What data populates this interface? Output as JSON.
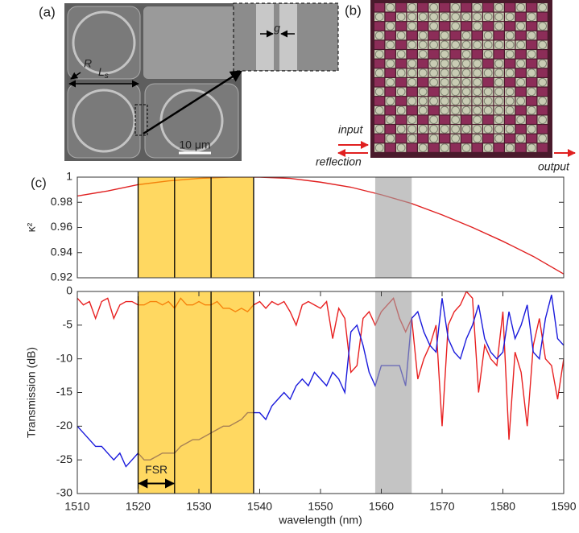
{
  "figure": {
    "panel_a": {
      "label": "(a)",
      "radius": "R",
      "side": "L",
      "side_sub": "s",
      "gap": "g",
      "scale_bar": "10 μm"
    },
    "panel_b": {
      "label": "(b)",
      "input": "input",
      "reflection": "reflection",
      "output": "output"
    },
    "panel_c": {
      "label": "(c)"
    }
  },
  "chart_data": [
    {
      "type": "line",
      "ylabel": "κ²",
      "x": [
        1510,
        1515,
        1520,
        1525,
        1530,
        1535,
        1540,
        1545,
        1550,
        1555,
        1560,
        1565,
        1570,
        1575,
        1580,
        1585,
        1590
      ],
      "series": [
        {
          "color": "#e02020",
          "values": [
            0.985,
            0.989,
            0.994,
            0.997,
            0.999,
            1.0,
            1.0,
            0.999,
            0.996,
            0.992,
            0.986,
            0.979,
            0.97,
            0.96,
            0.949,
            0.937,
            0.923
          ]
        }
      ],
      "xlim": [
        1510,
        1590
      ],
      "ylim": [
        0.92,
        1
      ],
      "yticks": [
        0.92,
        0.94,
        0.96,
        0.98,
        1
      ],
      "highlights": [
        {
          "x": [
            1520,
            1539
          ],
          "color": "#ffc000"
        },
        {
          "x": [
            1559,
            1565
          ],
          "color": "#a0a0a0"
        }
      ],
      "vlines": [
        1520,
        1526,
        1532,
        1539
      ]
    },
    {
      "type": "line",
      "xlabel": "wavelength (nm)",
      "ylabel": "Transmission (dB)",
      "x": [
        1510,
        1511,
        1512,
        1513,
        1514,
        1515,
        1516,
        1517,
        1518,
        1519,
        1520,
        1521,
        1522,
        1523,
        1524,
        1525,
        1526,
        1527,
        1528,
        1529,
        1530,
        1531,
        1532,
        1533,
        1534,
        1535,
        1536,
        1537,
        1538,
        1539,
        1540,
        1541,
        1542,
        1543,
        1544,
        1545,
        1546,
        1547,
        1548,
        1549,
        1550,
        1551,
        1552,
        1553,
        1554,
        1555,
        1556,
        1557,
        1558,
        1559,
        1560,
        1561,
        1562,
        1563,
        1564,
        1565,
        1566,
        1567,
        1568,
        1569,
        1570,
        1571,
        1572,
        1573,
        1574,
        1575,
        1576,
        1577,
        1578,
        1579,
        1580,
        1581,
        1582,
        1583,
        1584,
        1585,
        1586,
        1587,
        1588,
        1589,
        1590
      ],
      "series": [
        {
          "color": "#e82020",
          "values": [
            -1,
            -2,
            -1.5,
            -4,
            -1.5,
            -1,
            -4,
            -2,
            -1.5,
            -1.5,
            -2,
            -2,
            -1.5,
            -1.5,
            -2,
            -1.5,
            -2.5,
            -1,
            -2,
            -2,
            -1.5,
            -2,
            -2,
            -1.5,
            -2.5,
            -2.5,
            -3,
            -2.5,
            -3,
            -2,
            -1.5,
            -2.5,
            -1.5,
            -2,
            -1.5,
            -3,
            -5,
            -2,
            -1.5,
            -2,
            -2.5,
            -1.5,
            -7,
            -2.5,
            -4,
            -12,
            -11,
            -4,
            -3,
            -5,
            -3,
            -2,
            -1,
            -4,
            -6,
            -4,
            -13,
            -10,
            -8,
            -5,
            -20,
            -5,
            -3,
            -2,
            0,
            -1,
            -15,
            -8,
            -10,
            -11,
            -3,
            -22,
            -9,
            -12,
            -20,
            -8,
            -4,
            -10,
            -11,
            -16,
            -10
          ]
        },
        {
          "color": "#1a1adc",
          "values": [
            -20,
            -21,
            -22,
            -23,
            -23,
            -24,
            -25,
            -24,
            -26,
            -25,
            -24,
            -25,
            -25,
            -24.5,
            -24,
            -24,
            -24,
            -23,
            -22.5,
            -22,
            -22,
            -21.5,
            -21,
            -20.5,
            -20,
            -20,
            -19.5,
            -19,
            -18,
            -18,
            -18,
            -19,
            -17,
            -16,
            -15,
            -16,
            -14,
            -13,
            -14,
            -12,
            -13,
            -14,
            -12,
            -13,
            -15,
            -6,
            -5,
            -8,
            -12,
            -14,
            -11,
            -11,
            -11,
            -11,
            -14,
            -4,
            -3,
            -6,
            -8,
            -9,
            -1,
            -7,
            -9,
            -10,
            -7,
            -5,
            -2,
            -7,
            -9,
            -10,
            -9,
            -3,
            -7,
            -5,
            -2,
            -9,
            -10,
            -4,
            -0.5,
            -7,
            -8
          ]
        }
      ],
      "xlim": [
        1510,
        1590
      ],
      "xticks": [
        1510,
        1520,
        1530,
        1540,
        1550,
        1560,
        1570,
        1580,
        1590
      ],
      "ylim": [
        -30,
        0
      ],
      "yticks": [
        -30,
        -25,
        -20,
        -15,
        -10,
        -5,
        0
      ],
      "highlights": [
        {
          "x": [
            1520,
            1539
          ],
          "color": "#ffc000"
        },
        {
          "x": [
            1559,
            1565
          ],
          "color": "#a0a0a0"
        }
      ],
      "vlines": [
        1520,
        1526,
        1532,
        1539
      ],
      "annotations": [
        {
          "text": "FSR",
          "x": [
            1520,
            1526
          ],
          "y": -28.5
        }
      ]
    }
  ]
}
